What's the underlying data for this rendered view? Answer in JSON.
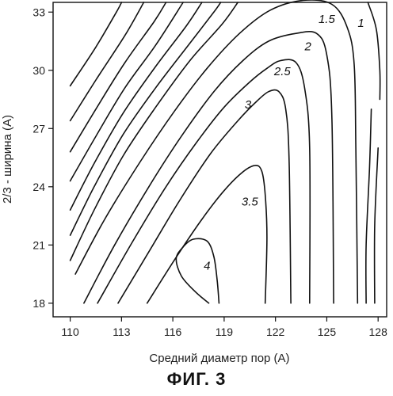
{
  "figure": {
    "caption": "ФИГ. 3"
  },
  "chart_data": {
    "type": "contour",
    "xlabel": "Средний диаметр пор (А)",
    "ylabel": "2/3 - ширина (А)",
    "xlim": [
      109,
      128.5
    ],
    "ylim": [
      17.3,
      33.5
    ],
    "xticks": [
      110,
      113,
      116,
      119,
      122,
      125,
      128
    ],
    "yticks": [
      18,
      21,
      24,
      27,
      30,
      33
    ],
    "grid": false,
    "contours": [
      {
        "label": "4",
        "label_at": [
          118.0,
          19.9
        ],
        "points": [
          [
            118.1,
            18
          ],
          [
            117.3,
            18.6
          ],
          [
            116.5,
            19.4
          ],
          [
            116.2,
            20.3
          ],
          [
            116.6,
            20.9
          ],
          [
            117.2,
            21.3
          ],
          [
            118.0,
            21.2
          ],
          [
            118.4,
            20.4
          ],
          [
            118.6,
            19.1
          ],
          [
            118.7,
            18
          ]
        ]
      },
      {
        "label": "3.5",
        "label_at": [
          120.5,
          23.2
        ],
        "points": [
          [
            114.5,
            18
          ],
          [
            116.0,
            20.1
          ],
          [
            117.6,
            22.2
          ],
          [
            118.9,
            23.7
          ],
          [
            120.0,
            24.7
          ],
          [
            120.8,
            25.1
          ],
          [
            121.2,
            24.8
          ],
          [
            121.4,
            23.6
          ],
          [
            121.5,
            21.4
          ],
          [
            121.4,
            18
          ]
        ]
      },
      {
        "label": "3",
        "label_at": [
          120.4,
          28.2
        ],
        "points": [
          [
            112.8,
            18
          ],
          [
            114.7,
            20.8
          ],
          [
            116.4,
            23.3
          ],
          [
            118.2,
            25.7
          ],
          [
            119.8,
            27.4
          ],
          [
            120.9,
            28.4
          ],
          [
            121.6,
            28.9
          ],
          [
            122.2,
            28.9
          ],
          [
            122.6,
            28.0
          ],
          [
            122.8,
            25.3
          ],
          [
            122.9,
            18
          ]
        ]
      },
      {
        "label": "2.5",
        "label_at": [
          122.4,
          29.9
        ],
        "points": [
          [
            111.6,
            18
          ],
          [
            113.6,
            21.1
          ],
          [
            115.6,
            24.0
          ],
          [
            117.4,
            26.3
          ],
          [
            119.0,
            28.1
          ],
          [
            120.5,
            29.4
          ],
          [
            121.5,
            30.1
          ],
          [
            122.3,
            30.5
          ],
          [
            123.2,
            30.4
          ],
          [
            123.7,
            29.1
          ],
          [
            124.0,
            26.0
          ],
          [
            124.0,
            18
          ]
        ]
      },
      {
        "label": "2",
        "label_at": [
          123.9,
          31.2
        ],
        "points": [
          [
            110.8,
            18
          ],
          [
            112.6,
            21.0
          ],
          [
            114.6,
            24.0
          ],
          [
            116.5,
            26.6
          ],
          [
            118.4,
            28.9
          ],
          [
            120.1,
            30.5
          ],
          [
            121.6,
            31.5
          ],
          [
            123.2,
            31.9
          ],
          [
            124.4,
            31.9
          ],
          [
            125.0,
            30.8
          ],
          [
            125.3,
            27.5
          ],
          [
            125.4,
            18
          ]
        ]
      },
      {
        "label": "1.5",
        "label_at": [
          125.0,
          32.6
        ],
        "points": [
          [
            110.3,
            19.5
          ],
          [
            112.0,
            22.3
          ],
          [
            114.1,
            25.3
          ],
          [
            116.1,
            27.9
          ],
          [
            118.0,
            30.1
          ],
          [
            119.9,
            31.9
          ],
          [
            121.7,
            33.1
          ],
          [
            123.6,
            33.6
          ],
          [
            125.3,
            33.4
          ],
          [
            126.2,
            32.2
          ],
          [
            126.6,
            30.3
          ],
          [
            126.7,
            26.0
          ],
          [
            126.8,
            18
          ]
        ]
      },
      {
        "label": "1",
        "label_at": [
          127.0,
          32.4
        ],
        "points": [
          [
            127.4,
            33.5
          ],
          [
            127.9,
            32.1
          ],
          [
            128.1,
            30.0
          ],
          [
            128.1,
            28.5
          ]
        ]
      }
    ],
    "unlabeled_contours": [
      {
        "points": [
          [
            110.0,
            20.2
          ],
          [
            111.4,
            22.8
          ],
          [
            113.1,
            25.6
          ],
          [
            115.0,
            28.1
          ],
          [
            117.0,
            30.5
          ],
          [
            118.9,
            32.4
          ],
          [
            119.8,
            33.5
          ]
        ]
      },
      {
        "points": [
          [
            110.0,
            21.5
          ],
          [
            111.4,
            24.0
          ],
          [
            113.1,
            26.7
          ],
          [
            115.0,
            29.1
          ],
          [
            117.0,
            31.4
          ],
          [
            118.4,
            33.0
          ],
          [
            118.8,
            33.5
          ]
        ]
      },
      {
        "points": [
          [
            110.0,
            22.8
          ],
          [
            111.4,
            25.2
          ],
          [
            113.1,
            27.8
          ],
          [
            115.0,
            30.2
          ],
          [
            116.8,
            32.3
          ],
          [
            117.7,
            33.5
          ]
        ]
      },
      {
        "points": [
          [
            110.0,
            24.3
          ],
          [
            111.5,
            26.6
          ],
          [
            113.2,
            29.1
          ],
          [
            115.0,
            31.3
          ],
          [
            116.6,
            33.5
          ]
        ]
      },
      {
        "points": [
          [
            110.0,
            25.8
          ],
          [
            111.5,
            28.0
          ],
          [
            113.2,
            30.4
          ],
          [
            114.9,
            32.5
          ],
          [
            115.6,
            33.5
          ]
        ]
      },
      {
        "points": [
          [
            110.0,
            27.4
          ],
          [
            111.5,
            29.5
          ],
          [
            113.2,
            31.8
          ],
          [
            114.3,
            33.5
          ]
        ]
      },
      {
        "points": [
          [
            110.0,
            29.2
          ],
          [
            111.5,
            31.2
          ],
          [
            112.7,
            33.0
          ],
          [
            113.0,
            33.5
          ]
        ]
      },
      {
        "points": [
          [
            127.3,
            18
          ],
          [
            127.3,
            21.0
          ],
          [
            127.5,
            25.0
          ],
          [
            127.6,
            28.0
          ]
        ]
      },
      {
        "points": [
          [
            127.8,
            18
          ],
          [
            127.8,
            22.0
          ],
          [
            128.0,
            26.0
          ]
        ]
      }
    ]
  }
}
